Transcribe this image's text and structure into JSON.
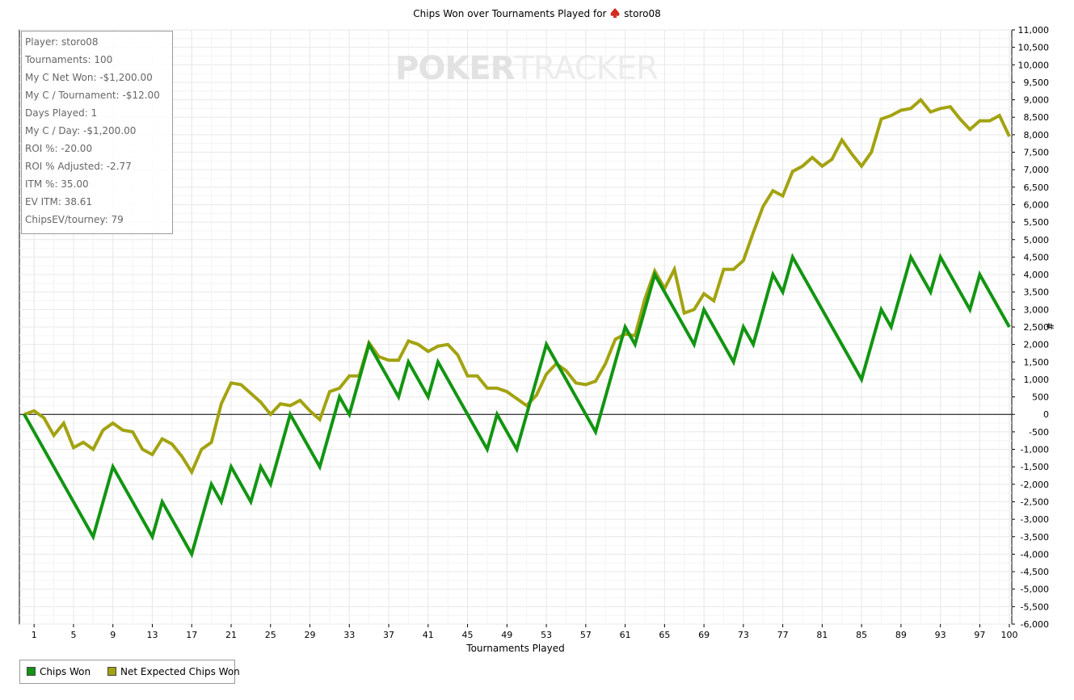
{
  "chart_data": {
    "type": "line",
    "title": "Chips Won over Tournaments Played for",
    "title_player": "storo08",
    "title_icon": "spade-icon",
    "xlabel": "Tournaments Played",
    "ylabel": "#",
    "xlim": [
      0,
      100
    ],
    "ylim": [
      -6000,
      11000
    ],
    "x_ticks": [
      1,
      5,
      9,
      13,
      17,
      21,
      25,
      29,
      33,
      37,
      41,
      45,
      49,
      53,
      57,
      61,
      65,
      69,
      73,
      77,
      81,
      85,
      89,
      93,
      97,
      100
    ],
    "y_ticks": [
      11000,
      10500,
      10000,
      9500,
      9000,
      8500,
      8000,
      7500,
      7000,
      6500,
      6000,
      5500,
      5000,
      4500,
      4000,
      3500,
      3000,
      2500,
      2000,
      1500,
      1000,
      500,
      0,
      -500,
      -1000,
      -1500,
      -2000,
      -2500,
      -3000,
      -3500,
      -4000,
      -4500,
      -5000,
      -5500,
      -6000
    ],
    "y_tick_labels": [
      "11,000",
      "10,500",
      "10,000",
      "9,500",
      "9,000",
      "8,500",
      "8,000",
      "7,500",
      "7,000",
      "6,500",
      "6,000",
      "5,500",
      "5,000",
      "4,500",
      "4,000",
      "3,500",
      "3,000",
      "2,500",
      "2,000",
      "1,500",
      "1,000",
      "500",
      "0",
      "-500",
      "-1,000",
      "-1,500",
      "-2,000",
      "-2,500",
      "-3,000",
      "-3,500",
      "-4,000",
      "-4,500",
      "-5,000",
      "-5,500",
      "-6,000"
    ],
    "grid": true,
    "legend_position": "bottom-left",
    "series": [
      {
        "name": "Chips Won",
        "color": "#129512",
        "points": [
          [
            0,
            0
          ],
          [
            7,
            -3500
          ],
          [
            9,
            -1500
          ],
          [
            13,
            -3500
          ],
          [
            14,
            -2500
          ],
          [
            17,
            -4000
          ],
          [
            19,
            -2000
          ],
          [
            20,
            -2500
          ],
          [
            21,
            -1500
          ],
          [
            23,
            -2500
          ],
          [
            24,
            -1500
          ],
          [
            25,
            -2000
          ],
          [
            27,
            0
          ],
          [
            30,
            -1500
          ],
          [
            32,
            500
          ],
          [
            33,
            0
          ],
          [
            35,
            2000
          ],
          [
            38,
            500
          ],
          [
            39,
            1500
          ],
          [
            41,
            500
          ],
          [
            42,
            1500
          ],
          [
            47,
            -1000
          ],
          [
            48,
            0
          ],
          [
            50,
            -1000
          ],
          [
            53,
            2000
          ],
          [
            58,
            -500
          ],
          [
            61,
            2500
          ],
          [
            62,
            2000
          ],
          [
            64,
            4000
          ],
          [
            68,
            2000
          ],
          [
            69,
            3000
          ],
          [
            72,
            1500
          ],
          [
            73,
            2500
          ],
          [
            74,
            2000
          ],
          [
            76,
            4000
          ],
          [
            77,
            3500
          ],
          [
            78,
            4500
          ],
          [
            85,
            1000
          ],
          [
            87,
            3000
          ],
          [
            88,
            2500
          ],
          [
            90,
            4500
          ],
          [
            92,
            3500
          ],
          [
            93,
            4500
          ],
          [
            96,
            3000
          ],
          [
            97,
            4000
          ],
          [
            100,
            2500
          ]
        ]
      },
      {
        "name": "Net Expected Chips Won",
        "color": "#a3a312",
        "points": [
          [
            0,
            0
          ],
          [
            1,
            100
          ],
          [
            2,
            -100
          ],
          [
            3,
            -600
          ],
          [
            4,
            -250
          ],
          [
            5,
            -950
          ],
          [
            6,
            -800
          ],
          [
            7,
            -1000
          ],
          [
            8,
            -450
          ],
          [
            9,
            -250
          ],
          [
            10,
            -450
          ],
          [
            11,
            -500
          ],
          [
            12,
            -1000
          ],
          [
            13,
            -1150
          ],
          [
            14,
            -700
          ],
          [
            15,
            -850
          ],
          [
            16,
            -1200
          ],
          [
            17,
            -1650
          ],
          [
            18,
            -1000
          ],
          [
            19,
            -800
          ],
          [
            20,
            300
          ],
          [
            21,
            900
          ],
          [
            22,
            850
          ],
          [
            23,
            600
          ],
          [
            24,
            350
          ],
          [
            25,
            0
          ],
          [
            26,
            300
          ],
          [
            27,
            250
          ],
          [
            28,
            400
          ],
          [
            29,
            100
          ],
          [
            30,
            -150
          ],
          [
            31,
            650
          ],
          [
            32,
            750
          ],
          [
            33,
            1100
          ],
          [
            34,
            1100
          ],
          [
            35,
            2050
          ],
          [
            36,
            1650
          ],
          [
            37,
            1550
          ],
          [
            38,
            1550
          ],
          [
            39,
            2100
          ],
          [
            40,
            2000
          ],
          [
            41,
            1800
          ],
          [
            42,
            1950
          ],
          [
            43,
            2000
          ],
          [
            44,
            1700
          ],
          [
            45,
            1100
          ],
          [
            46,
            1100
          ],
          [
            47,
            750
          ],
          [
            48,
            750
          ],
          [
            49,
            650
          ],
          [
            50,
            450
          ],
          [
            51,
            250
          ],
          [
            52,
            550
          ],
          [
            53,
            1150
          ],
          [
            54,
            1450
          ],
          [
            55,
            1250
          ],
          [
            56,
            900
          ],
          [
            57,
            850
          ],
          [
            58,
            950
          ],
          [
            59,
            1450
          ],
          [
            60,
            2150
          ],
          [
            61,
            2300
          ],
          [
            62,
            2250
          ],
          [
            63,
            3300
          ],
          [
            64,
            4100
          ],
          [
            65,
            3600
          ],
          [
            66,
            4150
          ],
          [
            67,
            2900
          ],
          [
            68,
            3000
          ],
          [
            69,
            3450
          ],
          [
            70,
            3250
          ],
          [
            71,
            4150
          ],
          [
            72,
            4150
          ],
          [
            73,
            4400
          ],
          [
            74,
            5200
          ],
          [
            75,
            5950
          ],
          [
            76,
            6400
          ],
          [
            77,
            6250
          ],
          [
            78,
            6950
          ],
          [
            79,
            7100
          ],
          [
            80,
            7350
          ],
          [
            81,
            7100
          ],
          [
            82,
            7300
          ],
          [
            83,
            7850
          ],
          [
            84,
            7450
          ],
          [
            85,
            7100
          ],
          [
            86,
            7500
          ],
          [
            87,
            8450
          ],
          [
            88,
            8550
          ],
          [
            89,
            8700
          ],
          [
            90,
            8750
          ],
          [
            91,
            9000
          ],
          [
            92,
            8650
          ],
          [
            93,
            8750
          ],
          [
            94,
            8800
          ],
          [
            95,
            8450
          ],
          [
            96,
            8150
          ],
          [
            97,
            8400
          ],
          [
            98,
            8400
          ],
          [
            99,
            8550
          ],
          [
            100,
            7950
          ]
        ]
      }
    ]
  },
  "stats": [
    "Player: storo08",
    "Tournaments: 100",
    "My C Net Won: -$1,200.00",
    "My C / Tournament: -$12.00",
    "Days Played: 1",
    "My C / Day: -$1,200.00",
    "ROI %: -20.00",
    "ROI % Adjusted: -2.77",
    "ITM %: 35.00",
    "EV ITM: 38.61",
    "ChipsEV/tourney: 79"
  ],
  "watermark": {
    "part_a": "POKER",
    "part_b": "TRACKER"
  },
  "legend": [
    {
      "label": "Chips Won",
      "color": "#129512"
    },
    {
      "label": "Net Expected Chips Won",
      "color": "#a3a312"
    }
  ]
}
